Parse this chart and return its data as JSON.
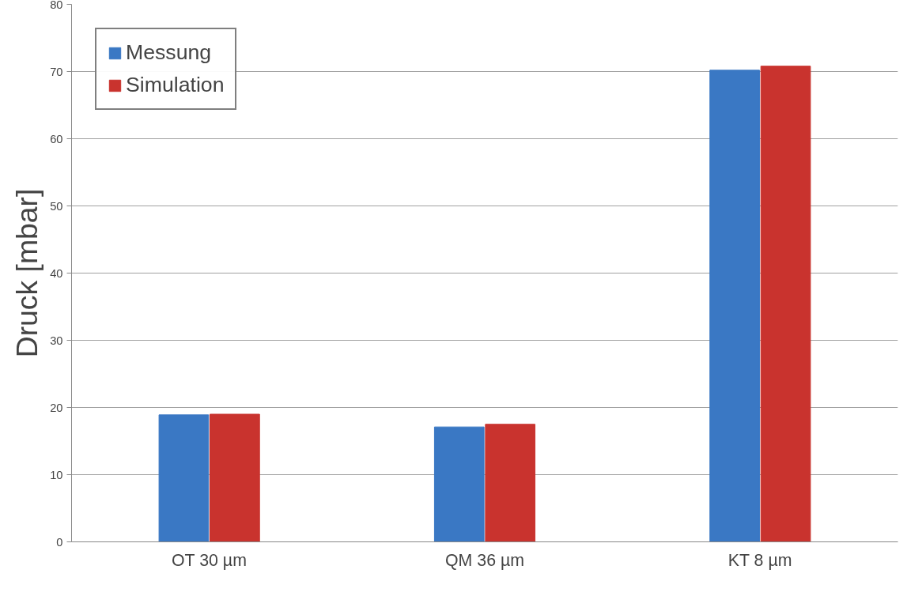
{
  "chart_data": {
    "type": "bar",
    "ylabel": "Druck [mbar]",
    "categories": [
      "OT 30 µm",
      "QM 36 µm",
      "KT 8 µm"
    ],
    "series": [
      {
        "name": "Messung",
        "color": "#3a78c4",
        "values": [
          18.9,
          17.1,
          70.2
        ]
      },
      {
        "name": "Simulation",
        "color": "#c9332e",
        "values": [
          19.0,
          17.5,
          70.8
        ]
      }
    ],
    "ylim": [
      0,
      80
    ],
    "yticks": [
      0,
      10,
      20,
      30,
      40,
      50,
      60,
      70,
      80
    ],
    "grid": "y",
    "legend": "top left"
  }
}
